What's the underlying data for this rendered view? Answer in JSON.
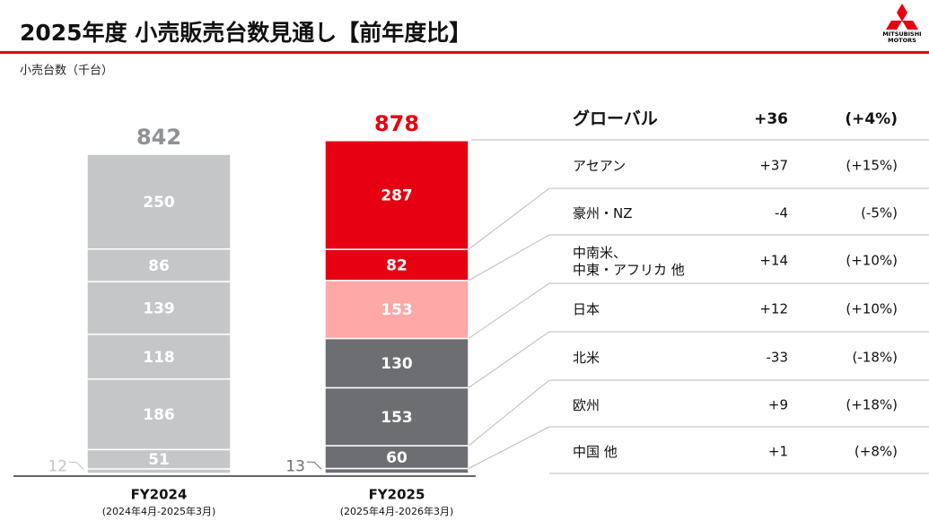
{
  "header": {
    "title": "2025年度 小売販売台数見通し【前年度比】",
    "logo": [
      "MITSUBISHI",
      "MOTORS"
    ]
  },
  "chart_data": {
    "type": "stacked-bar",
    "unit_label": "小売台数（千台）",
    "categories": [
      "FY2024",
      "FY2025"
    ],
    "periods": [
      "(2024年4月-2025年3月)",
      "(2025年4月-2026年3月)"
    ],
    "totals": [
      842,
      878
    ],
    "total_colors": [
      "#8f9194",
      "#e60012"
    ],
    "series": [
      {
        "values": [
          12,
          13
        ],
        "colors": [
          "#c4c6c8",
          "#6d6e71"
        ]
      },
      {
        "values": [
          51,
          60
        ],
        "colors": [
          "#c4c6c8",
          "#6d6e71"
        ]
      },
      {
        "values": [
          186,
          153
        ],
        "colors": [
          "#c4c6c8",
          "#6d6e71"
        ]
      },
      {
        "values": [
          118,
          130
        ],
        "colors": [
          "#c4c6c8",
          "#6d6e71"
        ]
      },
      {
        "values": [
          139,
          153
        ],
        "colors": [
          "#c4c6c8",
          "#ffa8a8"
        ]
      },
      {
        "values": [
          86,
          82
        ],
        "colors": [
          "#c4c6c8",
          "#e60012"
        ]
      },
      {
        "values": [
          250,
          287
        ],
        "colors": [
          "#c4c6c8",
          "#e60012"
        ]
      }
    ]
  },
  "table": {
    "header": [
      "グローバル",
      "+36",
      "(+4%)"
    ],
    "rows": [
      [
        "アセアン",
        "+37",
        "(+15%)"
      ],
      [
        "豪州・NZ",
        "-4",
        "(-5%)"
      ],
      [
        "中南米、\n中東・アフリカ 他",
        "+14",
        "(+10%)"
      ],
      [
        "日本",
        "+12",
        "(+10%)"
      ],
      [
        "北米",
        "-33",
        "(-18%)"
      ],
      [
        "欧州",
        "+9",
        "(+18%)"
      ],
      [
        "中国 他",
        "+1",
        "(+8%)"
      ]
    ]
  }
}
